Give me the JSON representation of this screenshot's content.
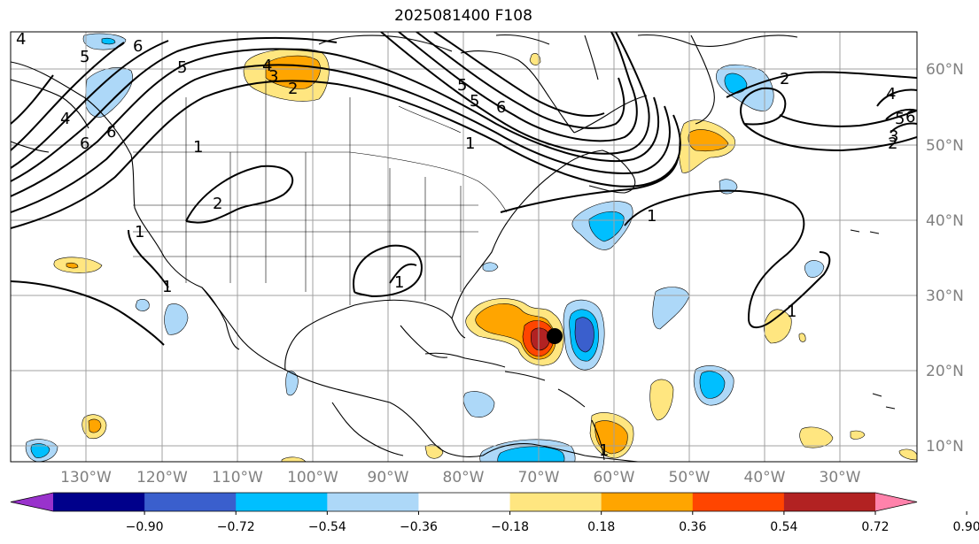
{
  "title": "2025081400 F108",
  "lat_labels": [
    "60°N",
    "50°N",
    "40°N",
    "30°N",
    "20°N",
    "10°N"
  ],
  "lon_labels": [
    "130°W",
    "120°W",
    "110°W",
    "100°W",
    "90°W",
    "80°W",
    "70°W",
    "60°W",
    "50°W",
    "40°W",
    "30°W"
  ],
  "colorbar": {
    "tick_labels": [
      "−0.90",
      "−0.72",
      "−0.54",
      "−0.36",
      "−0.18",
      "0.18",
      "0.36",
      "0.54",
      "0.72",
      "0.90"
    ],
    "colors": [
      "#9932cc",
      "#00008b",
      "#3a5fcd",
      "#00bfff",
      "#add8f8",
      "#ffffff",
      "#ffe680",
      "#ffa500",
      "#ff4500",
      "#b22222",
      "#ff82ab"
    ]
  },
  "contour_labels": [
    "6",
    "5",
    "5",
    "4",
    "3",
    "2",
    "5",
    "6",
    "5",
    "6",
    "6",
    "4",
    "4",
    "1",
    "1",
    "2",
    "1",
    "1",
    "1",
    "1",
    "2",
    "2",
    "4",
    "5",
    "6",
    "3",
    "1",
    "1"
  ],
  "colors": {
    "contour": "#000000",
    "grid": "#a0a0a0",
    "coast": "#000000",
    "storm_marker": "#000000"
  }
}
